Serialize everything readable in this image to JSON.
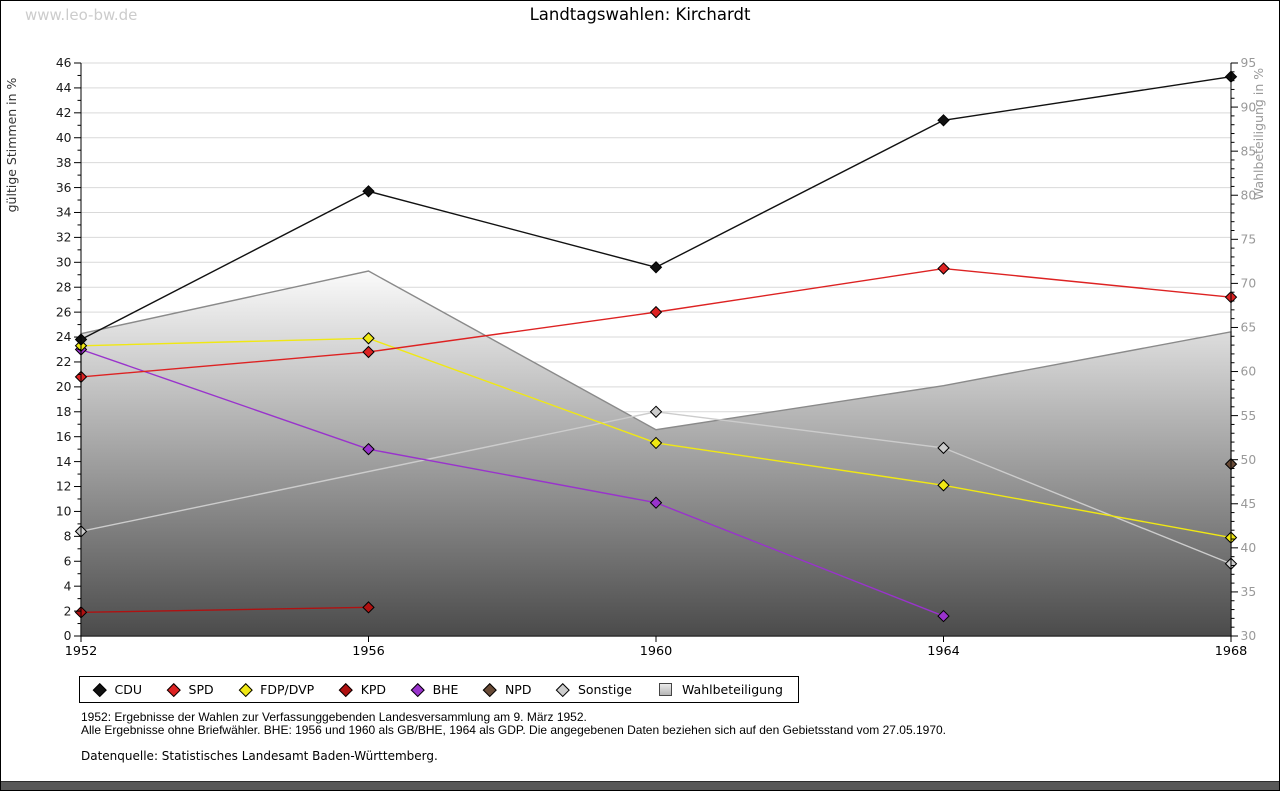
{
  "page": {
    "watermark": "www.leo-bw.de",
    "title": "Landtagswahlen: Kirchardt",
    "footnotes": [
      "1952: Ergebnisse der Wahlen zur Verfassunggebenden Landesversammlung am 9. März 1952.",
      "Alle Ergebnisse ohne Briefwähler. BHE: 1956 und 1960 als GB/BHE, 1964 als GDP. Die angegebenen Daten beziehen sich auf den Gebietsstand vom 27.05.1970."
    ],
    "source": "Datenquelle: Statistisches Landesamt Baden-Württemberg."
  },
  "chart_data": {
    "type": "line",
    "title": "Landtagswahlen: Kirchardt",
    "x": [
      1952,
      1956,
      1960,
      1964,
      1968
    ],
    "left_axis": {
      "label": "gültige Stimmen in %",
      "min": 0,
      "max": 46,
      "tick_step": 2,
      "tick_labels": [
        0,
        2,
        4,
        6,
        8,
        10,
        12,
        14,
        16,
        18,
        20,
        22,
        24,
        26,
        28,
        30,
        32,
        34,
        36,
        38,
        40,
        42,
        44,
        46
      ]
    },
    "right_axis": {
      "label": "Wahlbeteiligung in %",
      "min": 30,
      "max": 95,
      "tick_step": 5,
      "tick_labels": [
        30,
        35,
        40,
        45,
        50,
        55,
        60,
        65,
        70,
        75,
        80,
        85,
        90,
        95
      ]
    },
    "grid": true,
    "legend_position": "bottom",
    "series": [
      {
        "name": "CDU",
        "axis": "left",
        "marker": "diamond",
        "color": "#111111",
        "values": [
          23.8,
          35.7,
          29.6,
          41.4,
          44.9
        ]
      },
      {
        "name": "SPD",
        "axis": "left",
        "marker": "diamond",
        "color": "#dd2222",
        "values": [
          20.8,
          22.8,
          26.0,
          29.5,
          27.2
        ]
      },
      {
        "name": "FDP/DVP",
        "axis": "left",
        "marker": "diamond",
        "color": "#f0e813",
        "values": [
          23.3,
          23.9,
          15.5,
          12.1,
          7.9
        ]
      },
      {
        "name": "KPD",
        "axis": "left",
        "marker": "diamond",
        "color": "#b01111",
        "values": [
          1.9,
          2.3,
          null,
          null,
          null
        ]
      },
      {
        "name": "BHE",
        "axis": "left",
        "marker": "diamond",
        "color": "#9933cc",
        "values": [
          23.0,
          15.0,
          10.7,
          1.6,
          null
        ]
      },
      {
        "name": "NPD",
        "axis": "left",
        "marker": "diamond",
        "color": "#684a36",
        "values": [
          null,
          null,
          null,
          null,
          13.8
        ]
      },
      {
        "name": "Sonstige",
        "axis": "left",
        "marker": "diamond",
        "color": "#cccccc",
        "values": [
          8.4,
          null,
          18.0,
          15.1,
          5.8
        ]
      },
      {
        "name": "Wahlbeteiligung",
        "axis": "right",
        "type": "area",
        "color_top": "#fdfdfd",
        "color_bottom": "#4b4b4b",
        "border_color": "#8a8a8a",
        "values": [
          64.3,
          71.4,
          53.4,
          58.4,
          64.5
        ]
      }
    ]
  }
}
